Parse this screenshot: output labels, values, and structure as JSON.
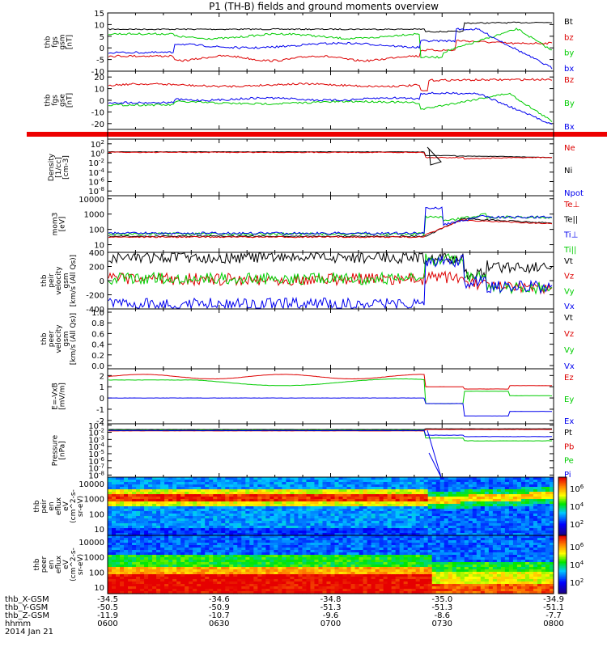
{
  "title": "P1 (TH-B) fields and ground moments overview",
  "colors": {
    "black": "#000000",
    "red": "#dd0000",
    "green": "#00cc00",
    "blue": "#0000ee"
  },
  "chart_data": [
    {
      "type": "line",
      "id": "fgs_gsm",
      "ylabel": [
        "thb",
        "fgs",
        "gsm",
        "[nT]"
      ],
      "ylim": [
        -10,
        15
      ],
      "yticks": [
        15,
        10,
        5,
        0,
        -5,
        -10
      ],
      "series": [
        {
          "name": "Bt",
          "color": "black",
          "level": 8
        },
        {
          "name": "bz",
          "color": "red",
          "level": -4
        },
        {
          "name": "by",
          "color": "green",
          "level": 5
        },
        {
          "name": "bx",
          "color": "blue",
          "level": -1
        }
      ]
    },
    {
      "type": "line",
      "id": "fgs_gse",
      "ylabel": [
        "thb",
        "fgs",
        "gse",
        "[nT]"
      ],
      "ylim": [
        -25,
        25
      ],
      "yticks": [
        20,
        10,
        0,
        -10,
        -20
      ],
      "series": [
        {
          "name": "Bz",
          "color": "red",
          "level": 13
        },
        {
          "name": "By",
          "color": "green",
          "level": -3
        },
        {
          "name": "Bx",
          "color": "blue",
          "level": 0
        }
      ]
    },
    {
      "type": "line",
      "id": "density",
      "ylabel": [
        "Density",
        "[1/cc]",
        "[cm-3]"
      ],
      "scale": "log",
      "ylim": [
        -9,
        3
      ],
      "yticks": [
        "10^2",
        "10^0",
        "10^-2",
        "10^-4",
        "10^-6",
        "10^-8"
      ],
      "series": [
        {
          "name": "Ne",
          "color": "red"
        },
        {
          "name": "Ni",
          "color": "black"
        },
        {
          "name": "Npot",
          "color": "blue"
        }
      ]
    },
    {
      "type": "line",
      "id": "temperature",
      "ylabel": [
        "mom3",
        "[eV]"
      ],
      "scale": "log",
      "ylim": [
        0.5,
        4.2
      ],
      "yticks": [
        "10000",
        "1000",
        "100",
        "10"
      ],
      "series": [
        {
          "name": "Te⊥",
          "color": "red"
        },
        {
          "name": "Te||",
          "color": "black"
        },
        {
          "name": "Ti⊥",
          "color": "blue"
        },
        {
          "name": "Ti||",
          "color": "green"
        }
      ]
    },
    {
      "type": "line",
      "id": "peir_velocity",
      "ylabel": [
        "thb",
        "peir",
        "velocity",
        "gsm",
        "[km/s (All Qs)]"
      ],
      "ylim": [
        -400,
        400
      ],
      "yticks": [
        "400",
        "200",
        "0",
        "-200",
        "-400"
      ],
      "series": [
        {
          "name": "Vt",
          "color": "black",
          "level": 330
        },
        {
          "name": "Vz",
          "color": "red",
          "level": 20
        },
        {
          "name": "Vy",
          "color": "green",
          "level": 30
        },
        {
          "name": "Vx",
          "color": "blue",
          "level": -330
        }
      ]
    },
    {
      "type": "line",
      "id": "peer_velocity",
      "ylabel": [
        "thb",
        "peer",
        "velocity",
        "gsm",
        "[km/s (All Qs)]"
      ],
      "ylim": [
        0,
        1
      ],
      "yticks": [
        "1.0",
        "0.8",
        "0.6",
        "0.4",
        "0.2",
        "0.0"
      ],
      "series": [
        {
          "name": "Vt",
          "color": "black"
        },
        {
          "name": "Vz",
          "color": "red"
        },
        {
          "name": "Vy",
          "color": "green"
        },
        {
          "name": "Vx",
          "color": "blue"
        }
      ]
    },
    {
      "type": "line",
      "id": "efield",
      "ylabel": [
        "E=-VxB",
        "[mV/m]"
      ],
      "ylim": [
        -2.3,
        2.6
      ],
      "yticks": [
        "2",
        "1",
        "0",
        "-1",
        "-2"
      ],
      "series": [
        {
          "name": "Ez",
          "color": "red",
          "level": 1.9
        },
        {
          "name": "Ey",
          "color": "green",
          "level": 1.6
        },
        {
          "name": "Ex",
          "color": "blue",
          "level": 0
        }
      ]
    },
    {
      "type": "line",
      "id": "pressure",
      "ylabel": [
        "Pressure",
        "[nPa]"
      ],
      "scale": "log",
      "ylim": [
        -8.3,
        -0.8
      ],
      "yticks": [
        "10^-1",
        "10^-2",
        "10^-3",
        "10^-4",
        "10^-5",
        "10^-6",
        "10^-7",
        "10^-8"
      ],
      "series": [
        {
          "name": "Pt",
          "color": "black"
        },
        {
          "name": "Pb",
          "color": "red"
        },
        {
          "name": "Pe",
          "color": "green"
        },
        {
          "name": "Pi",
          "color": "blue"
        }
      ]
    },
    {
      "type": "heatmap",
      "id": "peir_spec",
      "ylabel": [
        "thb",
        "peir",
        "en",
        "eflux",
        "eV",
        "(cm^2-s-",
        "sr-eV)"
      ],
      "yticks": [
        "10000",
        "1000",
        "100",
        "10"
      ]
    },
    {
      "type": "heatmap",
      "id": "peer_spec",
      "ylabel": [
        "thb",
        "peer",
        "en",
        "eflux",
        "eV",
        "(cm^2-s-",
        "sr-eV)"
      ],
      "yticks": [
        "10000",
        "1000",
        "100",
        "10"
      ]
    }
  ],
  "colorbar": {
    "ticks1": [
      "10^6",
      "10^4",
      "10^2"
    ],
    "ticks2": [
      "10^6",
      "10^4",
      "10^2"
    ]
  },
  "xaxis": {
    "rows": [
      {
        "label": "thb_X-GSM",
        "values": [
          "-34.5",
          "-34.6",
          "-34.8",
          "-35.0",
          "-34.9"
        ]
      },
      {
        "label": "thb_Y-GSM",
        "values": [
          "-50.5",
          "-50.9",
          "-51.3",
          "-51.3",
          "-51.1"
        ]
      },
      {
        "label": "thb_Z-GSM",
        "values": [
          "-11.9",
          "-10.7",
          "-9.6",
          "-8.6",
          "-7.7"
        ]
      },
      {
        "label": "hhmm",
        "values": [
          "0600",
          "0630",
          "0700",
          "0730",
          "0800"
        ]
      }
    ],
    "date": "2014 Jan 21"
  }
}
